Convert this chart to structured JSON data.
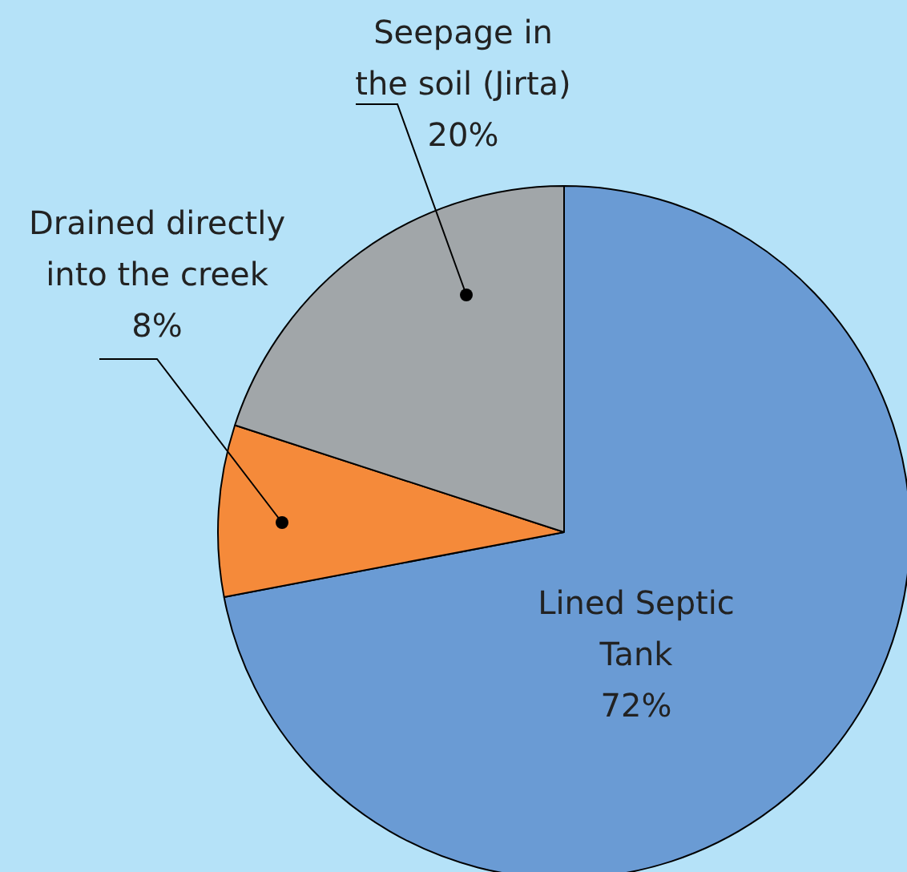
{
  "chart_data": {
    "type": "pie",
    "categories": [
      "Lined Septic Tank",
      "Drained directly into the creek",
      "Seepage in the soil (Jirta)"
    ],
    "values": [
      72,
      8,
      20
    ],
    "colors": [
      "#6a9bd4",
      "#f58a3a",
      "#a1a6a9"
    ],
    "value_labels": [
      "72%",
      "8%",
      "20%"
    ],
    "legend": false
  }
}
